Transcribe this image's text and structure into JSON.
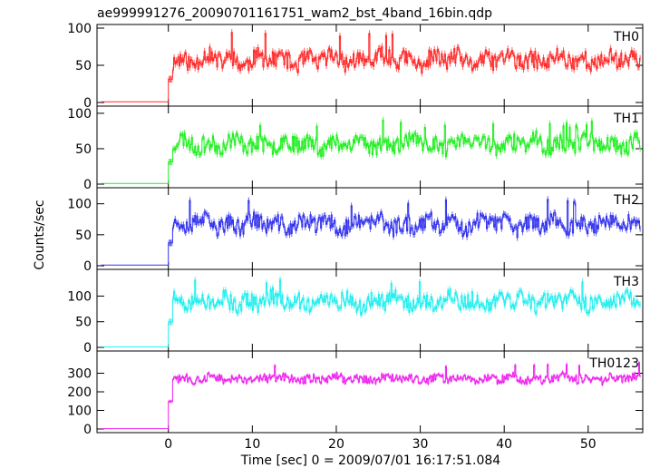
{
  "chart_data": {
    "type": "line",
    "title": "ae999991276_20090701161751_wam2_bst_4band_16bin.qdp",
    "xlabel": "Time [sec] 0 = 2009/07/01 16:17:51.084",
    "ylabel": "Counts/sec",
    "xlim": [
      -8.5,
      56.5
    ],
    "x_ticks": [
      0,
      10,
      20,
      30,
      40,
      50
    ],
    "t_start_source": 0,
    "panels": [
      {
        "name": "TH0",
        "color": "#ff2a2a",
        "ylim": [
          0,
          100
        ],
        "y_ticks": [
          0,
          50,
          100
        ],
        "pre_level": 1,
        "post_level": 57,
        "noise": 13,
        "peak": 95,
        "seed": 11
      },
      {
        "name": "TH1",
        "color": "#22ee22",
        "ylim": [
          0,
          105
        ],
        "y_ticks": [
          0,
          50,
          100
        ],
        "pre_level": 1,
        "post_level": 57,
        "noise": 13,
        "peak": 92,
        "seed": 23
      },
      {
        "name": "TH2",
        "color": "#3333ee",
        "ylim": [
          0,
          120
        ],
        "y_ticks": [
          0,
          50,
          100
        ],
        "pre_level": 1,
        "post_level": 67,
        "noise": 15,
        "peak": 110,
        "seed": 37
      },
      {
        "name": "TH3",
        "color": "#22eeee",
        "ylim": [
          0,
          145
        ],
        "y_ticks": [
          0,
          50,
          100
        ],
        "pre_level": 1,
        "post_level": 90,
        "noise": 18,
        "peak": 140,
        "seed": 51
      },
      {
        "name": "TH0123",
        "color": "#ee22ee",
        "ylim": [
          0,
          400
        ],
        "y_ticks": [
          0,
          100,
          200,
          300
        ],
        "pre_level": 2,
        "post_level": 270,
        "noise": 25,
        "peak": 360,
        "seed": 73
      }
    ]
  }
}
